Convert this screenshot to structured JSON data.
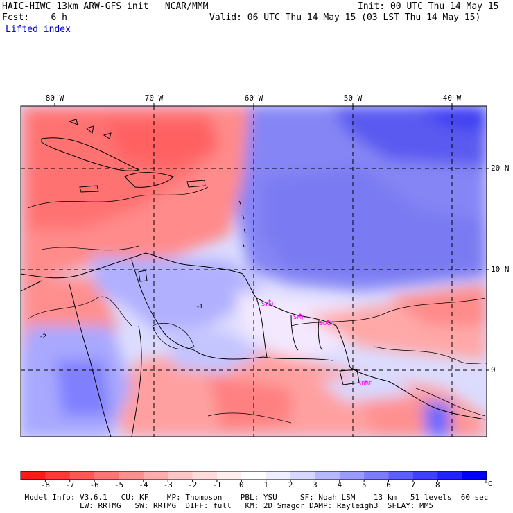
{
  "header": {
    "model_title": "HAIC-HIWC 13km ARW-GFS init",
    "org": "NCAR/MMM",
    "init": "Init: 00 UTC Thu 14 May 15",
    "fcst_label": "Fcst:",
    "fcst_value": "6 h",
    "valid": "Valid: 06 UTC Thu 14 May 15 (03 LST Thu 14 May 15)",
    "field": "Lifted index"
  },
  "map": {
    "lon_labels": [
      "80 W",
      "70 W",
      "60 W",
      "50 W",
      "40 W"
    ],
    "lat_labels": [
      "20 N",
      "10 N",
      "0"
    ],
    "stations": [
      "SYEJ",
      "SMJP",
      "SOCA",
      "SBBE"
    ],
    "contour_labels": [
      "-2",
      "-1"
    ]
  },
  "colorbar": {
    "labels": [
      "-8",
      "-7",
      "-6",
      "-5",
      "-4",
      "-3",
      "-2",
      "-1",
      "0",
      "1",
      "2",
      "3",
      "4",
      "5",
      "6",
      "7",
      "8"
    ],
    "unit": "°C",
    "colors": [
      "#ff1a1a",
      "#ff3838",
      "#ff5656",
      "#ff7474",
      "#ff9090",
      "#ffacac",
      "#ffc6c6",
      "#ffdcdc",
      "#ffeeee",
      "#ffffff",
      "#eeeeff",
      "#d6d6ff",
      "#b8b8ff",
      "#9a9aff",
      "#7c7cff",
      "#5e5eff",
      "#4040ff",
      "#2222ff",
      "#0000ff"
    ]
  },
  "model_info": {
    "line1": "Model Info: V3.6.1   CU: KF    MP: Thompson    PBL: YSU     SF: Noah LSM    13 km   51 levels  60 sec",
    "line2": "LW: RRTMG   SW: RRTMG  DIFF: full   KM: 2D Smagor DAMP: Rayleigh3  SFLAY: MM5"
  }
}
